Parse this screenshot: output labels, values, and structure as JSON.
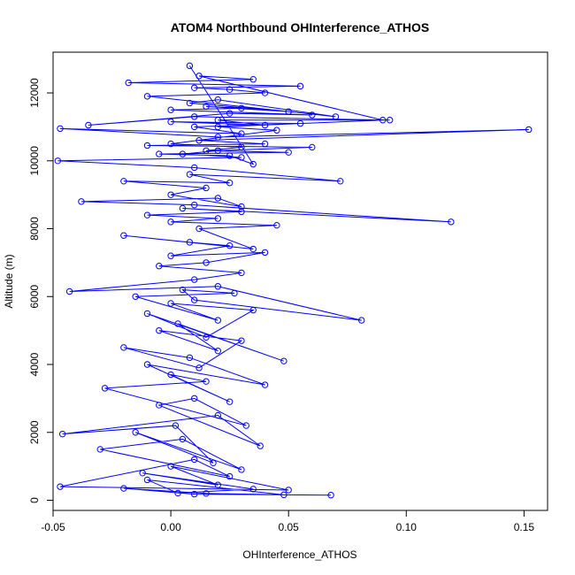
{
  "chart_data": {
    "type": "line",
    "title": "ATOM4 Northbound OHInterference_ATHOS",
    "xlabel": "OHInterference_ATHOS",
    "ylabel": "Altitude (m)",
    "xlim": [
      -0.05,
      0.16
    ],
    "ylim": [
      -300,
      13200
    ],
    "x_ticks": [
      -0.05,
      0.0,
      0.05,
      0.1,
      0.15
    ],
    "x_tick_labels": [
      "-0.05",
      "0.00",
      "0.05",
      "0.10",
      "0.15"
    ],
    "y_ticks": [
      0,
      2000,
      4000,
      6000,
      8000,
      10000,
      12000
    ],
    "y_tick_labels": [
      "0",
      "2000",
      "4000",
      "6000",
      "8000",
      "10000",
      "12000"
    ],
    "grid": false,
    "marker": "open-circle",
    "series": [
      {
        "color": "#0000ff",
        "x": [
          0.068,
          0.01,
          -0.02,
          0.015,
          0.048,
          -0.01,
          0.003,
          0.035,
          -0.012,
          0.02,
          0.0,
          0.05,
          -0.047,
          0.01,
          0.025,
          -0.03,
          0.005,
          0.03,
          -0.015,
          0.018,
          0.002,
          -0.046,
          0.02,
          0.038,
          -0.005,
          0.01,
          0.032,
          -0.028,
          0.015,
          0.0,
          0.025,
          -0.01,
          0.04,
          0.008,
          -0.02,
          0.012,
          0.03,
          -0.005,
          0.02,
          0.003,
          0.048,
          -0.01,
          0.015,
          0.035,
          0.0,
          0.02,
          -0.015,
          0.027,
          0.005,
          0.01,
          0.081,
          0.02,
          -0.043,
          0.01,
          0.03,
          -0.005,
          0.015,
          0.04,
          0.0,
          0.025,
          0.008,
          -0.02,
          0.035,
          0.012,
          0.045,
          0.0,
          0.02,
          -0.01,
          0.03,
          0.005,
          0.119,
          0.01,
          -0.038,
          0.02,
          0.03,
          0.0,
          0.015,
          -0.02,
          0.025,
          0.008,
          0.072,
          0.01,
          -0.048,
          0.03,
          0.005,
          0.02,
          0.06,
          -0.01,
          0.04,
          0.012,
          0.152,
          0.02,
          -0.047,
          0.03,
          0.01,
          0.055,
          0.0,
          0.04,
          0.02,
          0.093,
          0.01,
          -0.035,
          0.025,
          0.06,
          0.0,
          0.03,
          0.015,
          0.05,
          0.008,
          0.02,
          0.07,
          -0.01,
          0.04,
          0.025,
          0.01,
          0.055,
          -0.018,
          0.035,
          0.012,
          0.09,
          0.02,
          0.045,
          0.0,
          0.03,
          0.015,
          0.05,
          -0.005,
          0.025,
          0.035,
          0.008
        ],
        "y": [
          150,
          180,
          350,
          200,
          160,
          600,
          210,
          330,
          800,
          450,
          1000,
          300,
          400,
          1200,
          700,
          1500,
          1800,
          900,
          2000,
          1100,
          2200,
          1950,
          2500,
          1600,
          2800,
          3000,
          2200,
          3300,
          3500,
          3700,
          2900,
          4000,
          3400,
          4200,
          4500,
          3900,
          4700,
          5000,
          4400,
          5200,
          4100,
          5500,
          4800,
          5600,
          5800,
          5300,
          6000,
          6100,
          6200,
          5900,
          5300,
          6300,
          6150,
          6500,
          6700,
          6900,
          7000,
          7300,
          7200,
          7500,
          7600,
          7800,
          7400,
          8000,
          8100,
          8200,
          8300,
          8400,
          8500,
          8600,
          8200,
          8700,
          8800,
          8900,
          8650,
          9000,
          9200,
          9400,
          9350,
          9600,
          9400,
          9800,
          10000,
          10100,
          10200,
          10300,
          10400,
          10450,
          10500,
          10600,
          10920,
          10700,
          10950,
          10800,
          11000,
          11100,
          11150,
          11050,
          11200,
          11200,
          11300,
          11050,
          11400,
          11350,
          11500,
          11550,
          11600,
          11450,
          11700,
          11800,
          11300,
          11900,
          12000,
          12100,
          12150,
          12200,
          12300,
          12400,
          12500,
          11200,
          11000,
          10900,
          10500,
          10400,
          10300,
          10250,
          10200,
          10150,
          9900,
          12800
        ]
      }
    ]
  }
}
